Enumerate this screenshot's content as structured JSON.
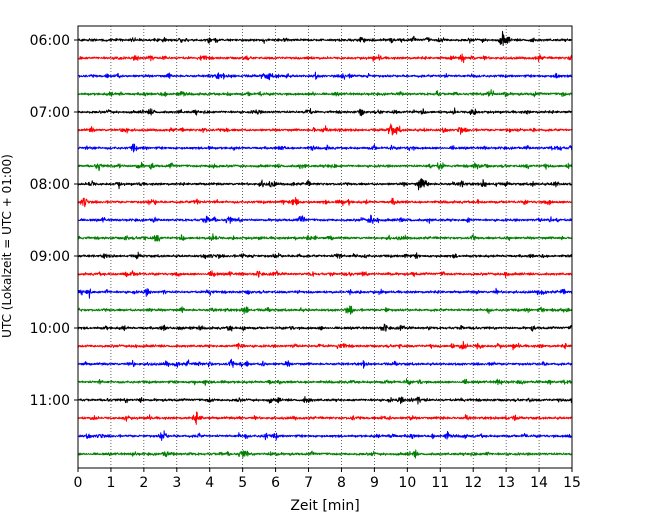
{
  "chart_data": {
    "type": "line",
    "xlabel": "Zeit  [min]",
    "ylabel": "UTC (Lokalzeit = UTC + 01:00)",
    "xlim": [
      0,
      15
    ],
    "x_ticks": [
      "0",
      "1",
      "2",
      "3",
      "4",
      "5",
      "6",
      "7",
      "8",
      "9",
      "10",
      "11",
      "12",
      "13",
      "14",
      "15"
    ],
    "y_tick_labels": [
      "06:00",
      "07:00",
      "08:00",
      "09:00",
      "10:00",
      "11:00"
    ],
    "grid": "vertical-dotted",
    "trace_interval_minutes": 15,
    "trace_colors": [
      "#000000",
      "#ff0000",
      "#0000ff",
      "#008000"
    ],
    "series": [
      {
        "start": "06:00",
        "color": "#000000",
        "events": [
          [
            12.9,
            1.0
          ],
          [
            4.0,
            0.3
          ],
          [
            8.6,
            0.3
          ]
        ]
      },
      {
        "start": "06:15",
        "color": "#ff0000",
        "events": [
          [
            2.2,
            0.4
          ],
          [
            15.0,
            0.5
          ]
        ]
      },
      {
        "start": "06:30",
        "color": "#0000ff",
        "events": [
          [
            5.8,
            0.4
          ],
          [
            1.2,
            0.3
          ]
        ]
      },
      {
        "start": "06:45",
        "color": "#008000",
        "events": [
          [
            12.5,
            0.5
          ],
          [
            2.6,
            0.3
          ]
        ]
      },
      {
        "start": "07:00",
        "color": "#000000",
        "events": [
          [
            7.0,
            0.5
          ],
          [
            12.0,
            0.6
          ]
        ]
      },
      {
        "start": "07:15",
        "color": "#ff0000",
        "events": [
          [
            9.5,
            0.7
          ],
          [
            11.6,
            0.5
          ],
          [
            7.5,
            0.4
          ]
        ]
      },
      {
        "start": "07:30",
        "color": "#0000ff",
        "events": [
          [
            6.2,
            0.3
          ],
          [
            10.1,
            0.3
          ]
        ]
      },
      {
        "start": "07:45",
        "color": "#008000",
        "events": [
          [
            11.0,
            0.6
          ],
          [
            4.1,
            0.4
          ],
          [
            12.1,
            0.5
          ],
          [
            0.6,
            0.4
          ]
        ]
      },
      {
        "start": "08:00",
        "color": "#000000",
        "events": [
          [
            10.4,
            1.0
          ],
          [
            0.4,
            0.5
          ],
          [
            5.6,
            0.4
          ],
          [
            14.5,
            0.4
          ]
        ]
      },
      {
        "start": "08:15",
        "color": "#ff0000",
        "events": [
          [
            0.2,
            0.8
          ],
          [
            6.6,
            0.9
          ]
        ]
      },
      {
        "start": "08:30",
        "color": "#0000ff",
        "events": [
          [
            3.9,
            0.6
          ],
          [
            6.8,
            0.6
          ],
          [
            4.6,
            0.4
          ]
        ]
      },
      {
        "start": "08:45",
        "color": "#008000",
        "events": [
          [
            2.4,
            0.6
          ],
          [
            4.2,
            0.3
          ]
        ]
      },
      {
        "start": "09:00",
        "color": "#000000",
        "events": [
          [
            7.9,
            0.5
          ],
          [
            4.1,
            0.3
          ]
        ]
      },
      {
        "start": "09:15",
        "color": "#ff0000",
        "events": [
          [
            4.1,
            0.5
          ],
          [
            6.0,
            0.4
          ]
        ]
      },
      {
        "start": "09:30",
        "color": "#0000ff",
        "events": [
          [
            2.1,
            0.4
          ],
          [
            4.0,
            0.3
          ],
          [
            14.1,
            0.3
          ]
        ]
      },
      {
        "start": "09:45",
        "color": "#008000",
        "events": [
          [
            8.2,
            0.4
          ]
        ]
      },
      {
        "start": "10:00",
        "color": "#000000",
        "events": [
          [
            9.3,
            0.5
          ],
          [
            2.6,
            0.3
          ]
        ]
      },
      {
        "start": "10:15",
        "color": "#ff0000",
        "events": [
          [
            4.9,
            0.5
          ],
          [
            11.7,
            0.6
          ]
        ]
      },
      {
        "start": "10:30",
        "color": "#0000ff",
        "events": [
          [
            3.0,
            0.3
          ]
        ]
      },
      {
        "start": "10:45",
        "color": "#008000",
        "events": [
          [
            10.0,
            0.3
          ]
        ]
      },
      {
        "start": "11:00",
        "color": "#000000",
        "events": [
          [
            7.0,
            0.3
          ],
          [
            4.0,
            0.3
          ]
        ]
      },
      {
        "start": "11:15",
        "color": "#ff0000",
        "events": [
          [
            3.6,
            0.7
          ]
        ]
      },
      {
        "start": "11:30",
        "color": "#0000ff",
        "events": [
          [
            2.6,
            0.6
          ],
          [
            11.2,
            0.5
          ],
          [
            5.7,
            0.4
          ]
        ]
      },
      {
        "start": "11:45",
        "color": "#008000",
        "events": [
          [
            12.0,
            0.3
          ]
        ]
      }
    ]
  }
}
